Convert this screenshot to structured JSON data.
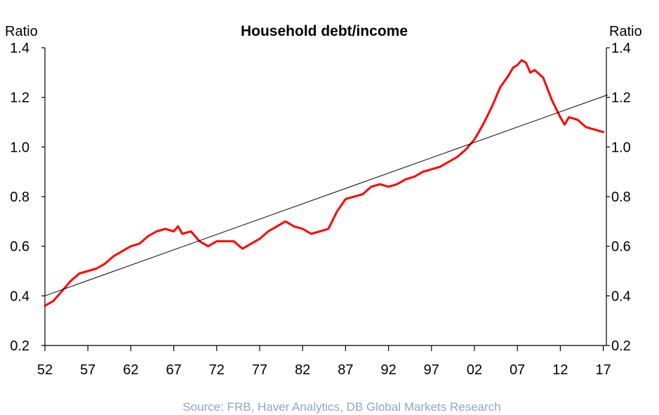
{
  "chart_data": {
    "type": "line",
    "title": "Household debt/income",
    "ylabel_left": "Ratio",
    "ylabel_right": "Ratio",
    "source": "Source:  FRB, Haver Analytics, DB Global Markets Research",
    "ylim": [
      0.2,
      1.4
    ],
    "xlim": [
      1952,
      2017.5
    ],
    "y_ticks": [
      0.2,
      0.4,
      0.6,
      0.8,
      1.0,
      1.2,
      1.4
    ],
    "y_tick_labels": [
      "0.2",
      "0.4",
      "0.6",
      "0.8",
      "1.0",
      "1.2",
      "1.4"
    ],
    "x_ticks": [
      1952,
      1957,
      1962,
      1967,
      1972,
      1977,
      1982,
      1987,
      1992,
      1997,
      2002,
      2007,
      2012,
      2017
    ],
    "x_tick_labels": [
      "52",
      "57",
      "62",
      "67",
      "72",
      "77",
      "82",
      "87",
      "92",
      "97",
      "02",
      "07",
      "12",
      "17"
    ],
    "grid": false,
    "legend": "none",
    "series": [
      {
        "color": "#ff0000",
        "style": "thick",
        "points": [
          [
            1952.0,
            0.36
          ],
          [
            1953.0,
            0.38
          ],
          [
            1954.0,
            0.42
          ],
          [
            1955.0,
            0.46
          ],
          [
            1956.0,
            0.49
          ],
          [
            1957.0,
            0.5
          ],
          [
            1958.0,
            0.51
          ],
          [
            1959.0,
            0.53
          ],
          [
            1960.0,
            0.56
          ],
          [
            1961.0,
            0.58
          ],
          [
            1962.0,
            0.6
          ],
          [
            1963.0,
            0.61
          ],
          [
            1964.0,
            0.64
          ],
          [
            1965.0,
            0.66
          ],
          [
            1966.0,
            0.67
          ],
          [
            1967.0,
            0.66
          ],
          [
            1967.5,
            0.68
          ],
          [
            1968.0,
            0.65
          ],
          [
            1969.0,
            0.66
          ],
          [
            1970.0,
            0.62
          ],
          [
            1971.0,
            0.6
          ],
          [
            1972.0,
            0.62
          ],
          [
            1973.0,
            0.62
          ],
          [
            1974.0,
            0.62
          ],
          [
            1975.0,
            0.59
          ],
          [
            1976.0,
            0.61
          ],
          [
            1977.0,
            0.63
          ],
          [
            1978.0,
            0.66
          ],
          [
            1979.0,
            0.68
          ],
          [
            1980.0,
            0.7
          ],
          [
            1981.0,
            0.68
          ],
          [
            1982.0,
            0.67
          ],
          [
            1983.0,
            0.65
          ],
          [
            1984.0,
            0.66
          ],
          [
            1985.0,
            0.67
          ],
          [
            1986.0,
            0.74
          ],
          [
            1987.0,
            0.79
          ],
          [
            1988.0,
            0.8
          ],
          [
            1989.0,
            0.81
          ],
          [
            1990.0,
            0.84
          ],
          [
            1991.0,
            0.85
          ],
          [
            1992.0,
            0.84
          ],
          [
            1993.0,
            0.85
          ],
          [
            1994.0,
            0.87
          ],
          [
            1995.0,
            0.88
          ],
          [
            1996.0,
            0.9
          ],
          [
            1997.0,
            0.91
          ],
          [
            1998.0,
            0.92
          ],
          [
            1999.0,
            0.94
          ],
          [
            2000.0,
            0.96
          ],
          [
            2001.0,
            0.99
          ],
          [
            2002.0,
            1.03
          ],
          [
            2003.0,
            1.09
          ],
          [
            2004.0,
            1.16
          ],
          [
            2005.0,
            1.24
          ],
          [
            2006.0,
            1.29
          ],
          [
            2006.5,
            1.32
          ],
          [
            2007.0,
            1.33
          ],
          [
            2007.5,
            1.35
          ],
          [
            2008.0,
            1.34
          ],
          [
            2008.5,
            1.3
          ],
          [
            2009.0,
            1.31
          ],
          [
            2010.0,
            1.28
          ],
          [
            2011.0,
            1.19
          ],
          [
            2012.0,
            1.12
          ],
          [
            2012.5,
            1.09
          ],
          [
            2013.0,
            1.12
          ],
          [
            2014.0,
            1.11
          ],
          [
            2015.0,
            1.08
          ],
          [
            2016.0,
            1.07
          ],
          [
            2017.0,
            1.06
          ]
        ]
      },
      {
        "color": "#000000",
        "style": "trend",
        "points": [
          [
            1952.0,
            0.4
          ],
          [
            2017.5,
            1.21
          ]
        ]
      }
    ]
  }
}
